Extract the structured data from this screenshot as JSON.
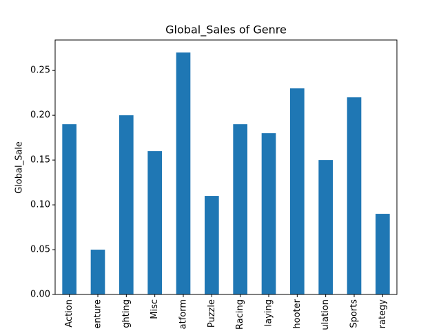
{
  "chart_data": {
    "type": "bar",
    "title": "Global_Sales of Genre",
    "y_label": "Global_Sale",
    "categories": [
      "Action",
      "enture",
      "ghting",
      "Misc",
      "atform",
      "Puzzle",
      "Racing",
      "laying",
      "hooter",
      "ulation",
      "Sports",
      "rategy"
    ],
    "values": [
      0.19,
      0.05,
      0.2,
      0.16,
      0.27,
      0.11,
      0.19,
      0.18,
      0.23,
      0.15,
      0.22,
      0.09
    ],
    "color": "#1f77b4",
    "ylim": [
      0,
      0.284
    ],
    "yticks": [
      {
        "value": 0,
        "label": "0.00"
      },
      {
        "value": 0.05,
        "label": "0.05"
      },
      {
        "value": 0.1,
        "label": "0.10"
      },
      {
        "value": 0.15,
        "label": "0.15"
      },
      {
        "value": 0.2,
        "label": "0.20"
      },
      {
        "value": 0.25,
        "label": "0.25"
      }
    ],
    "grid": false
  }
}
